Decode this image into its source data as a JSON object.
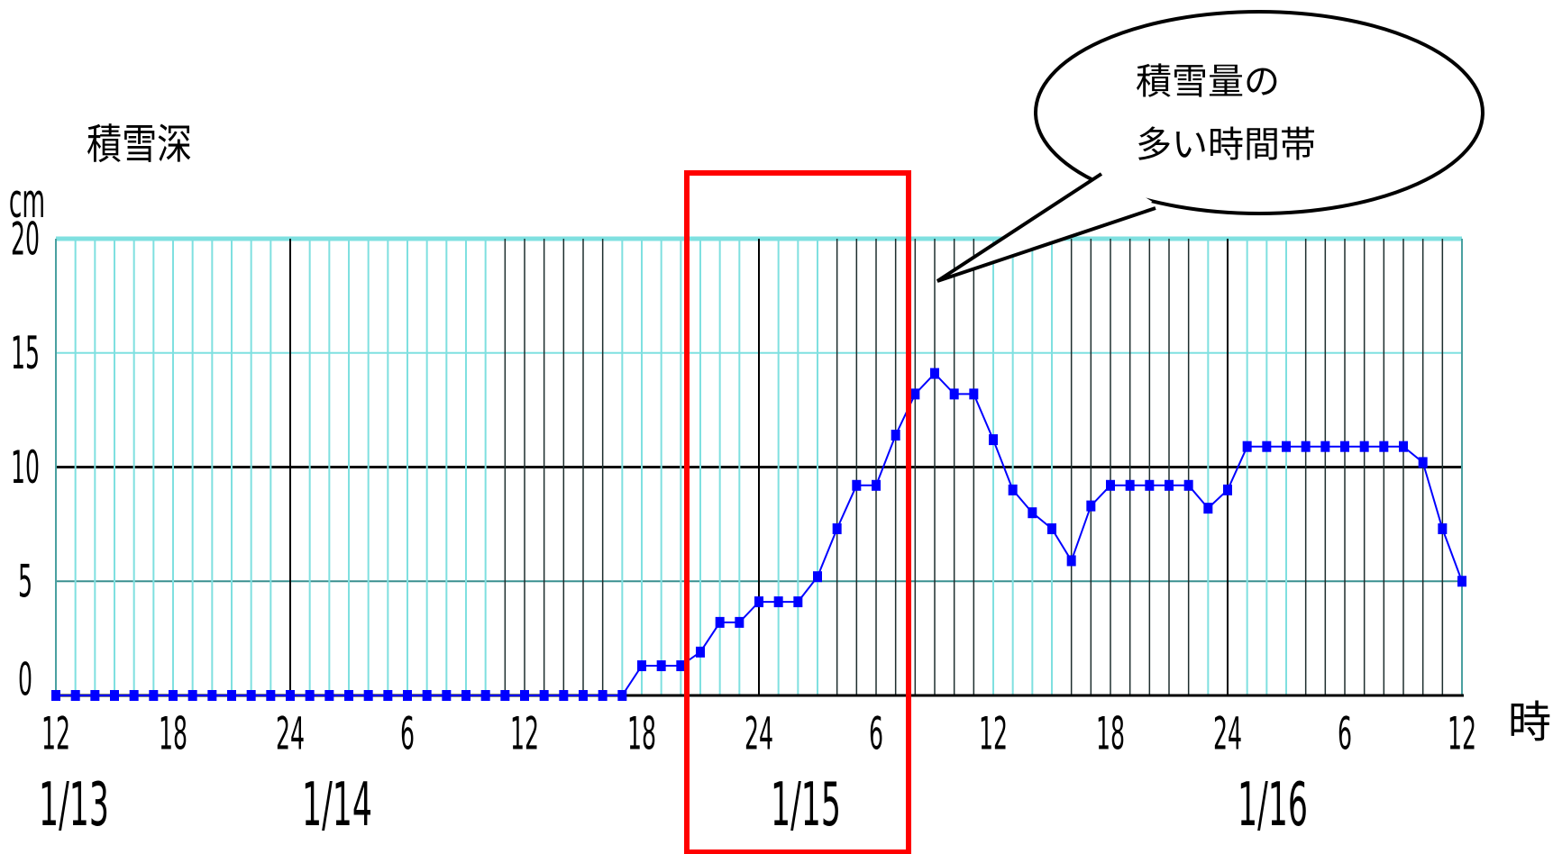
{
  "chart_data": {
    "type": "line",
    "ylabel": "積雪深",
    "yunit": "cm",
    "xunit": "時",
    "ylim": [
      0,
      20
    ],
    "yticks": [
      "0",
      "5",
      "10",
      "15",
      "20"
    ],
    "xticks": [
      "12",
      "18",
      "24",
      "6",
      "12",
      "18",
      "24",
      "6",
      "12",
      "18",
      "24",
      "6",
      "12"
    ],
    "date_labels": [
      "1/13",
      "1/14",
      "1/15",
      "1/16"
    ],
    "callout": [
      "積雪量の",
      "多い時間帯"
    ],
    "series": [
      {
        "color": "#0000ff",
        "hours_from_start": [
          0,
          1,
          2,
          3,
          4,
          5,
          6,
          7,
          8,
          9,
          10,
          11,
          12,
          13,
          14,
          15,
          16,
          17,
          18,
          19,
          20,
          21,
          22,
          23,
          24,
          25,
          26,
          27,
          28,
          29,
          30,
          31,
          32,
          33,
          34,
          35,
          36,
          37,
          38,
          39,
          40,
          41,
          42,
          43,
          44,
          45,
          46,
          47,
          48,
          49,
          50,
          51,
          52,
          53,
          54,
          55,
          56,
          57,
          58,
          59,
          60,
          61,
          62,
          63,
          64,
          65,
          66,
          67,
          68,
          69,
          70,
          71,
          72
        ],
        "values": [
          0,
          0,
          0,
          0,
          0,
          0,
          0,
          0,
          0,
          0,
          0,
          0,
          0,
          0,
          0,
          0,
          0,
          0,
          0,
          0,
          0,
          0,
          0,
          0,
          0,
          0,
          0,
          0,
          0,
          0,
          1.3,
          1.3,
          1.3,
          1.9,
          3.2,
          3.2,
          4.1,
          4.1,
          4.1,
          5.2,
          7.3,
          9.2,
          9.2,
          11.4,
          13.2,
          14.1,
          13.2,
          13.2,
          11.2,
          9,
          8,
          7.3,
          5.9,
          8.3,
          9.2,
          9.2,
          9.2,
          9.2,
          9.2,
          8.2,
          9,
          10.9,
          10.9,
          10.9,
          10.9,
          10.9,
          10.9,
          10.9,
          10.9,
          10.9,
          10.2,
          7.3,
          5
        ]
      }
    ],
    "highlight_hours": [
      32,
      43
    ]
  },
  "colors": {
    "gridline": "#7fe0e0",
    "major_line": "#000000",
    "series": "#0000ff",
    "highlight": "#ff0000"
  }
}
